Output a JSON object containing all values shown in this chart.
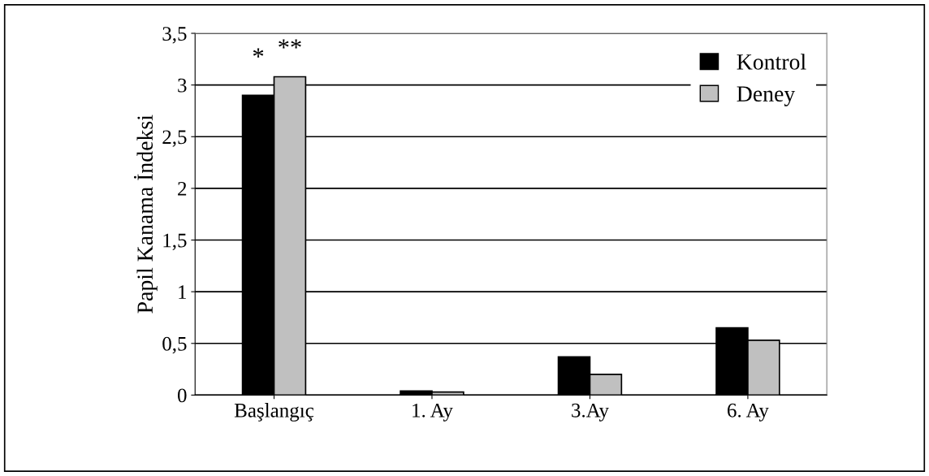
{
  "chart_data": {
    "type": "bar",
    "ylabel": "Papil Kanama İndeksi",
    "categories": [
      "Başlangıç",
      "1. Ay",
      "3.Ay",
      "6. Ay"
    ],
    "series": [
      {
        "name": "Kontrol",
        "color": "#000000",
        "values": [
          2.9,
          0.04,
          0.37,
          0.65
        ]
      },
      {
        "name": "Deney",
        "color": "#c0c0c0",
        "values": [
          3.08,
          0.03,
          0.2,
          0.53
        ]
      }
    ],
    "ylim": [
      0,
      3.5
    ],
    "yticks": [
      {
        "value": 0,
        "label": "0"
      },
      {
        "value": 0.5,
        "label": "0,5"
      },
      {
        "value": 1,
        "label": "1"
      },
      {
        "value": 1.5,
        "label": "1,5"
      },
      {
        "value": 2,
        "label": "2"
      },
      {
        "value": 2.5,
        "label": "2,5"
      },
      {
        "value": 3,
        "label": "3"
      },
      {
        "value": 3.5,
        "label": "3,5"
      }
    ],
    "grid": "y",
    "legend": "top right",
    "annotations": [
      "*",
      "**"
    ]
  }
}
